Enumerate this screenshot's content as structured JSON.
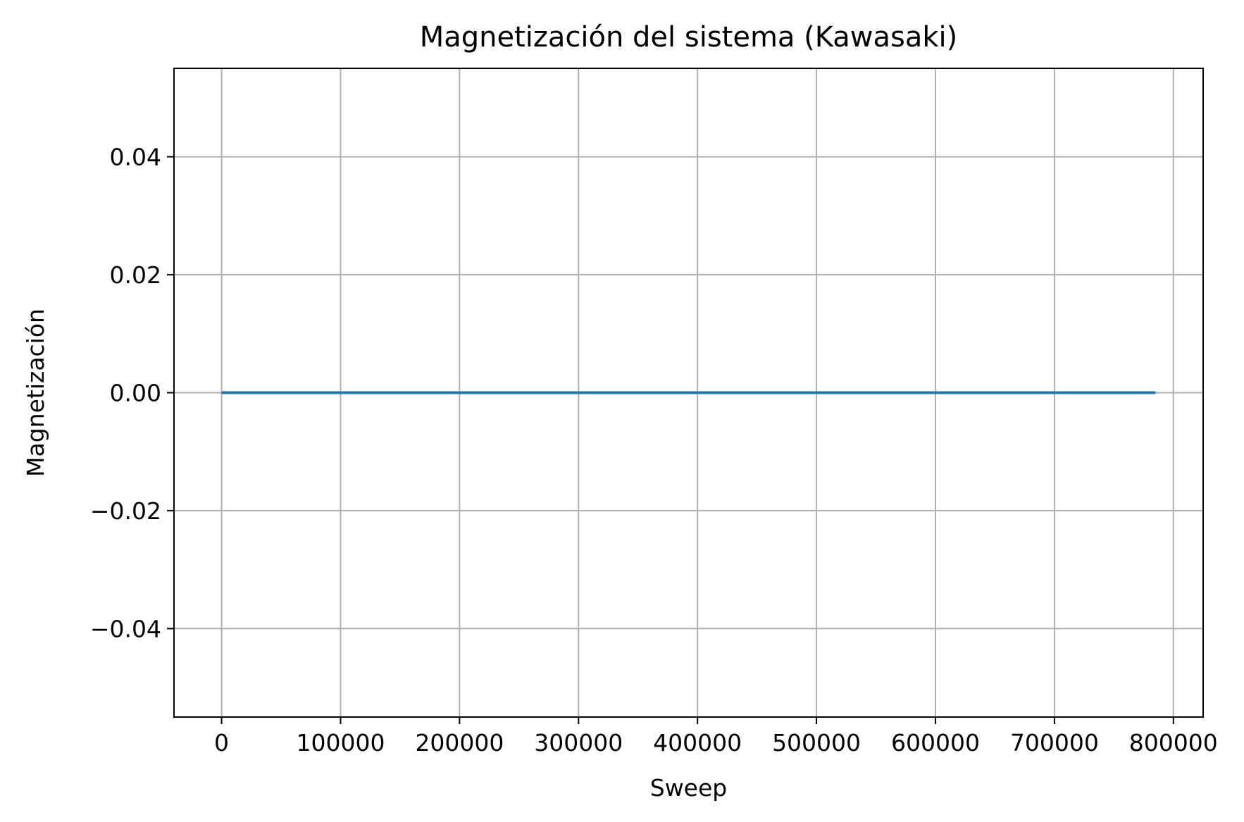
{
  "chart_data": {
    "type": "line",
    "title": "Magnetización del sistema (Kawasaki)",
    "xlabel": "Sweep",
    "ylabel": "Magnetización",
    "xlim": [
      -40000,
      825000
    ],
    "ylim": [
      -0.055,
      0.055
    ],
    "xticks": [
      0,
      100000,
      200000,
      300000,
      400000,
      500000,
      600000,
      700000,
      800000
    ],
    "xtick_labels": [
      "0",
      "100000",
      "200000",
      "300000",
      "400000",
      "500000",
      "600000",
      "700000",
      "800000"
    ],
    "yticks": [
      0.04,
      0.02,
      0.0,
      -0.02,
      -0.04
    ],
    "ytick_labels": [
      "0.04",
      "0.02",
      "0.00",
      "−0.02",
      "−0.04"
    ],
    "grid": true,
    "series": [
      {
        "color": "#1f77b4",
        "x": [
          0,
          785000
        ],
        "y": [
          0.0,
          0.0
        ]
      }
    ]
  }
}
